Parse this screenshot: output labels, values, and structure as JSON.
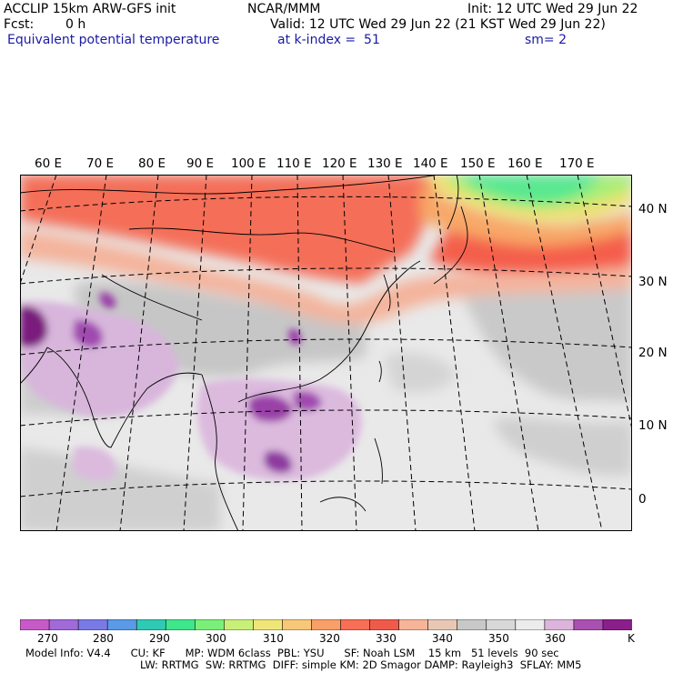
{
  "header": {
    "title": "ACCLIP 15km ARW-GFS init",
    "org": "NCAR/MMM",
    "init": "Init: 12 UTC Wed 29 Jun 22",
    "fcst_label": "Fcst:",
    "fcst_value": "0 h",
    "valid": "Valid: 12 UTC Wed 29 Jun 22 (21 KST Wed 29 Jun 22)",
    "field_name": "Equivalent potential temperature",
    "level": "at k-index =  51",
    "smoothing": "sm= 2"
  },
  "map": {
    "lon_labels": [
      "60 E",
      "70 E",
      "80 E",
      "90 E",
      "100 E",
      "110 E",
      "120 E",
      "130 E",
      "140 E",
      "150 E",
      "160 E",
      "170 E"
    ],
    "lat_labels": [
      "40 N",
      "30 N",
      "20 N",
      "10 N",
      "0"
    ],
    "region": "Asia / Western Pacific",
    "projection": "Mercator-like with curved graticule"
  },
  "colorbar": {
    "tick_labels": [
      "270",
      "280",
      "290",
      "300",
      "310",
      "320",
      "330",
      "340",
      "350",
      "360"
    ],
    "unit": "K",
    "colors": [
      "#c85ac8",
      "#a06ad8",
      "#7a7ae6",
      "#5a9ae6",
      "#2ecab4",
      "#3ee68c",
      "#7af07a",
      "#c8f078",
      "#f0e678",
      "#f8c878",
      "#f8a068",
      "#f86e56",
      "#f05a4a",
      "#f8b498",
      "#e8c8b4",
      "#c8c8c8",
      "#d8d8d8",
      "#ececec",
      "#dcb4dc",
      "#aa50b0",
      "#8c1e8c"
    ]
  },
  "footer": {
    "line1": "Model Info: V4.4      CU: KF      MP: WDM 6class  PBL: YSU      SF: Noah LSM    15 km   51 levels  90 sec",
    "line2": "LW: RRTMG  SW: RRTMG  DIFF: simple KM: 2D Smagor DAMP: Rayleigh3  SFLAY: MM5"
  }
}
